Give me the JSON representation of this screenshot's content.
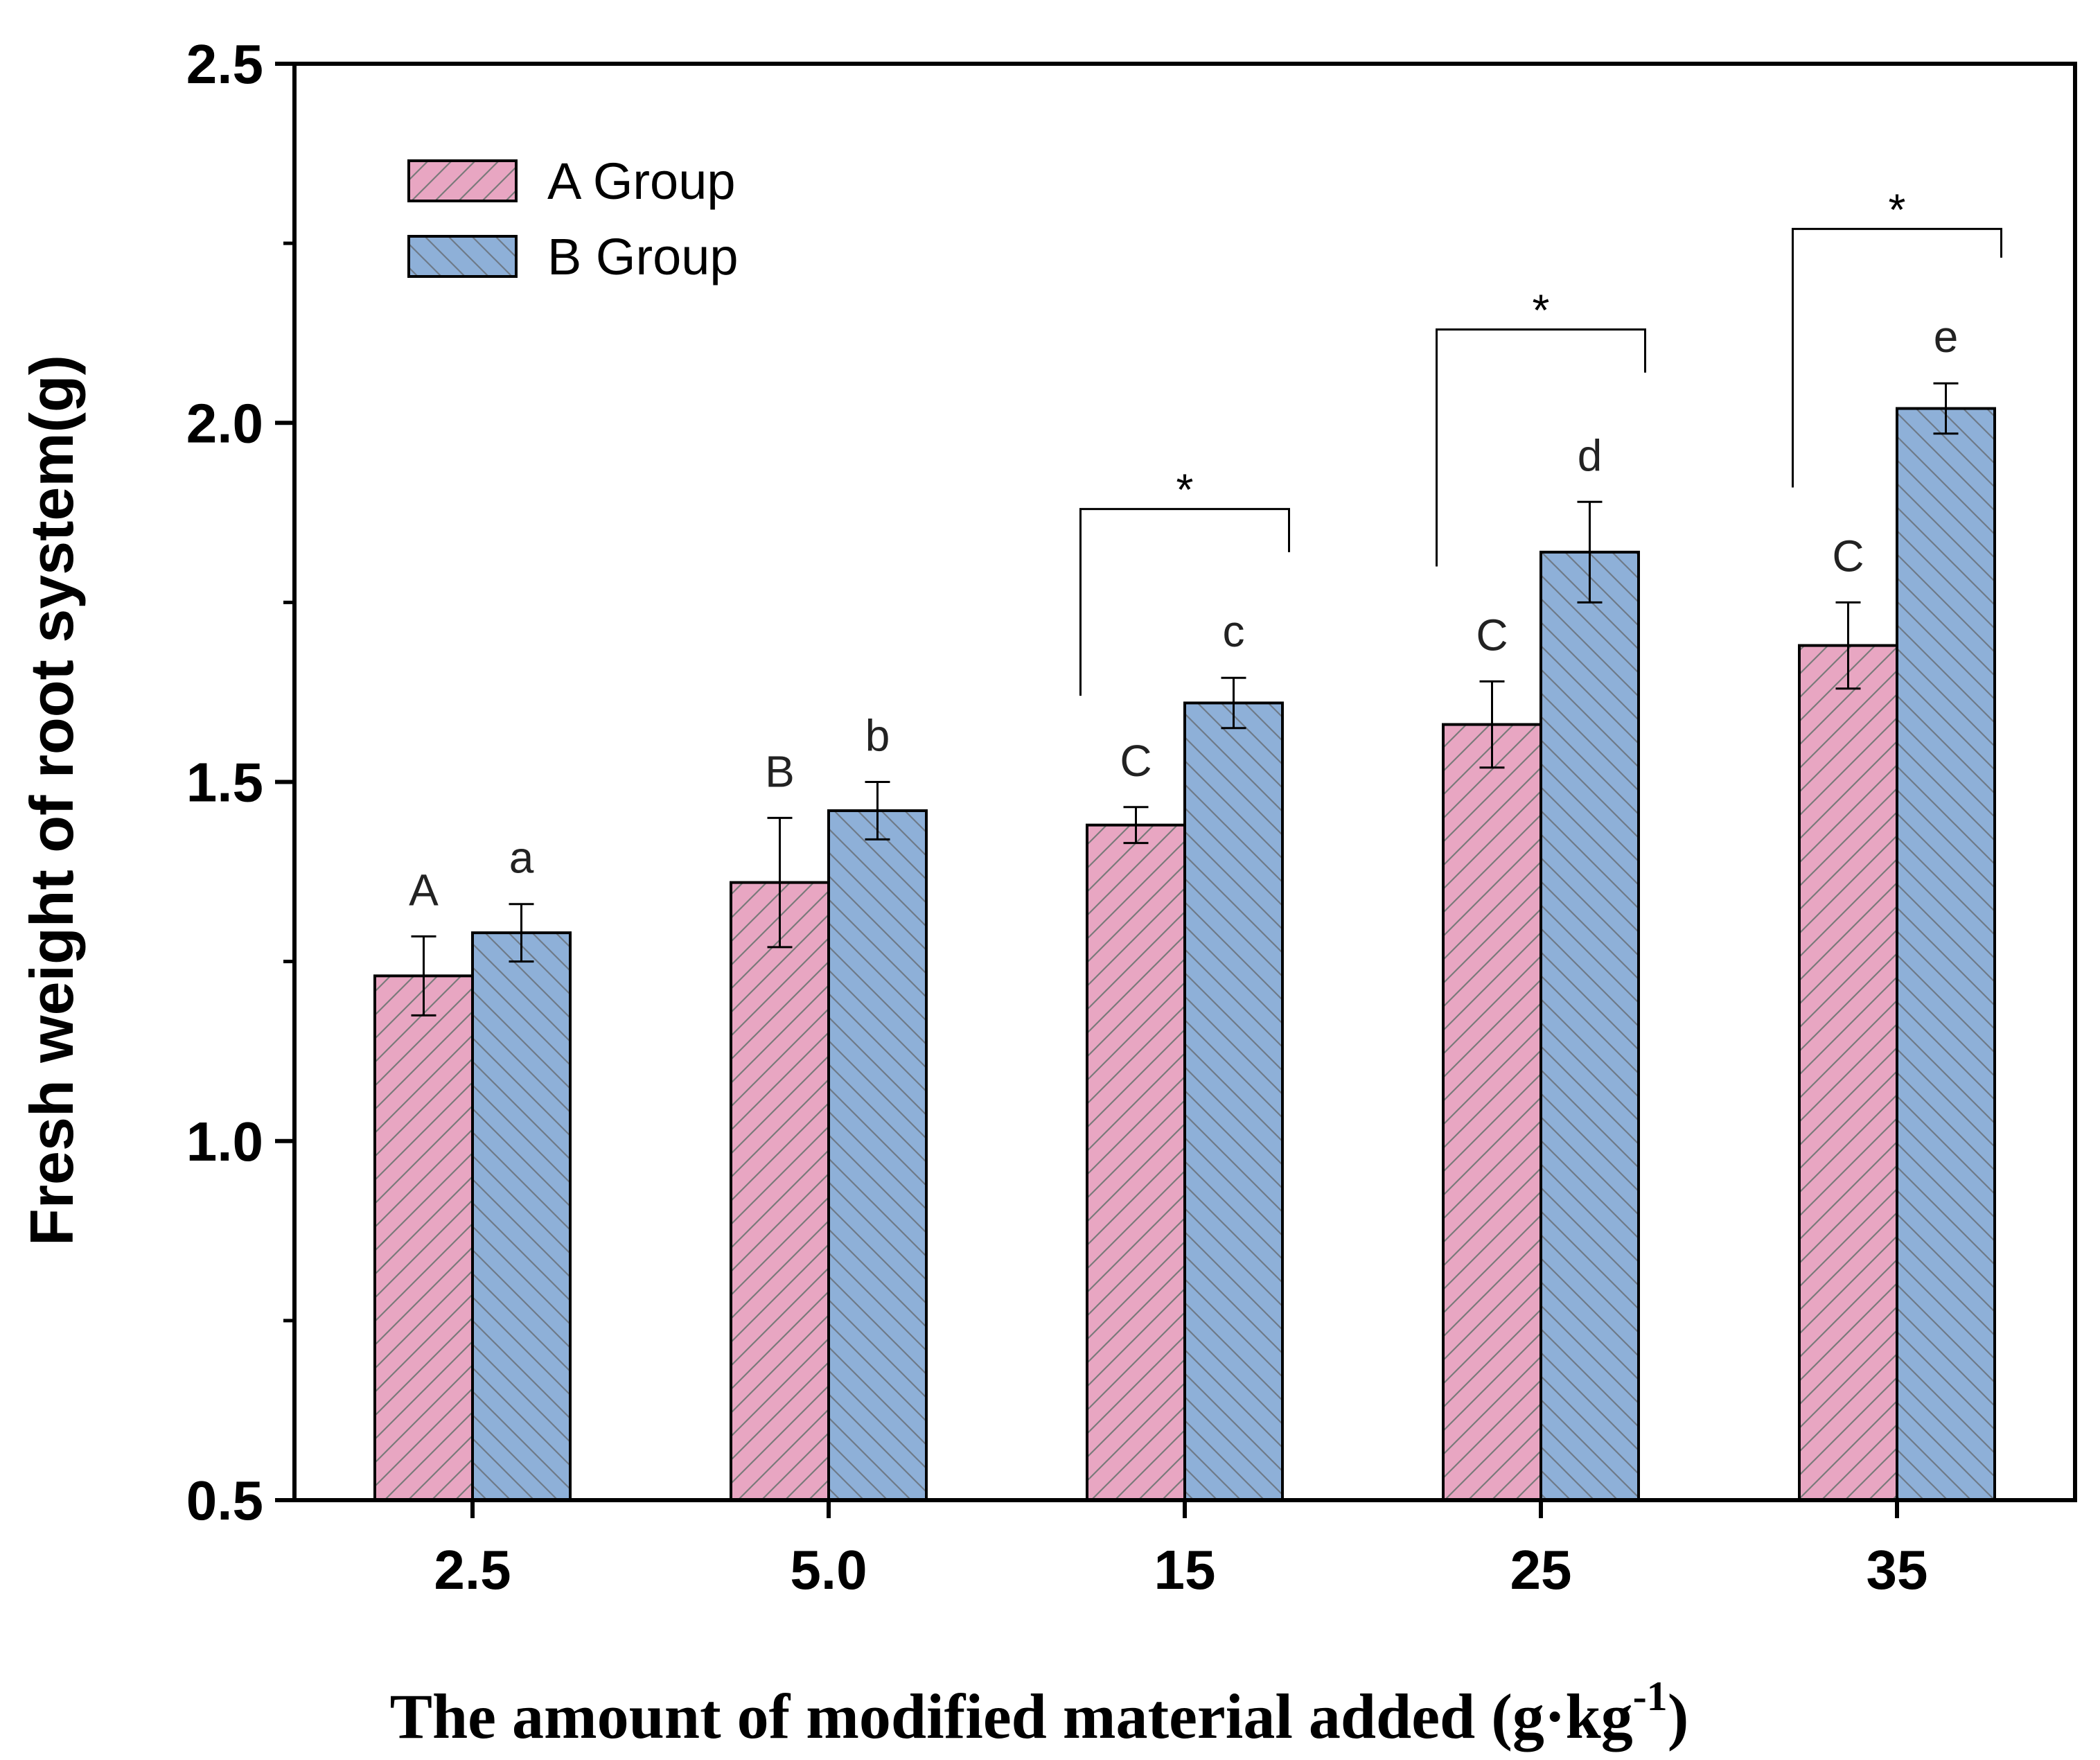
{
  "chart_data": {
    "type": "bar",
    "xlabel_main": "The amount of modified material added (g·kg",
    "xlabel_sup": "-1",
    "xlabel_close": ")",
    "ylabel": "Fresh weight of root system(g)",
    "ylim": [
      0.5,
      2.5
    ],
    "yticks": [
      "0.5",
      "1.0",
      "1.5",
      "2.0",
      "2.5"
    ],
    "categories": [
      "2.5",
      "5.0",
      "15",
      "25",
      "35"
    ],
    "legend_position": "top-left",
    "colors": {
      "A": "#e8a6c2",
      "B": "#8eb0d8",
      "hatch": "#7a7a7a"
    },
    "series": [
      {
        "name": "A Group",
        "values": [
          1.23,
          1.36,
          1.44,
          1.58,
          1.69
        ],
        "errors": [
          0.055,
          0.09,
          0.025,
          0.06,
          0.06
        ],
        "letters": [
          "A",
          "B",
          "C",
          "C",
          "C"
        ]
      },
      {
        "name": "B Group",
        "values": [
          1.29,
          1.46,
          1.61,
          1.82,
          2.02
        ],
        "errors": [
          0.04,
          0.04,
          0.035,
          0.07,
          0.035
        ],
        "letters": [
          "a",
          "b",
          "c",
          "d",
          "e"
        ]
      }
    ],
    "significance": [
      {
        "category": "15",
        "label": "*",
        "y_top": 1.88,
        "left_bottom": 1.62,
        "right_bottom": 1.82
      },
      {
        "category": "25",
        "label": "*",
        "y_top": 2.13,
        "left_bottom": 1.8,
        "right_bottom": 2.07
      },
      {
        "category": "35",
        "label": "*",
        "y_top": 2.27,
        "left_bottom": 1.91,
        "right_bottom": 2.23
      }
    ]
  }
}
